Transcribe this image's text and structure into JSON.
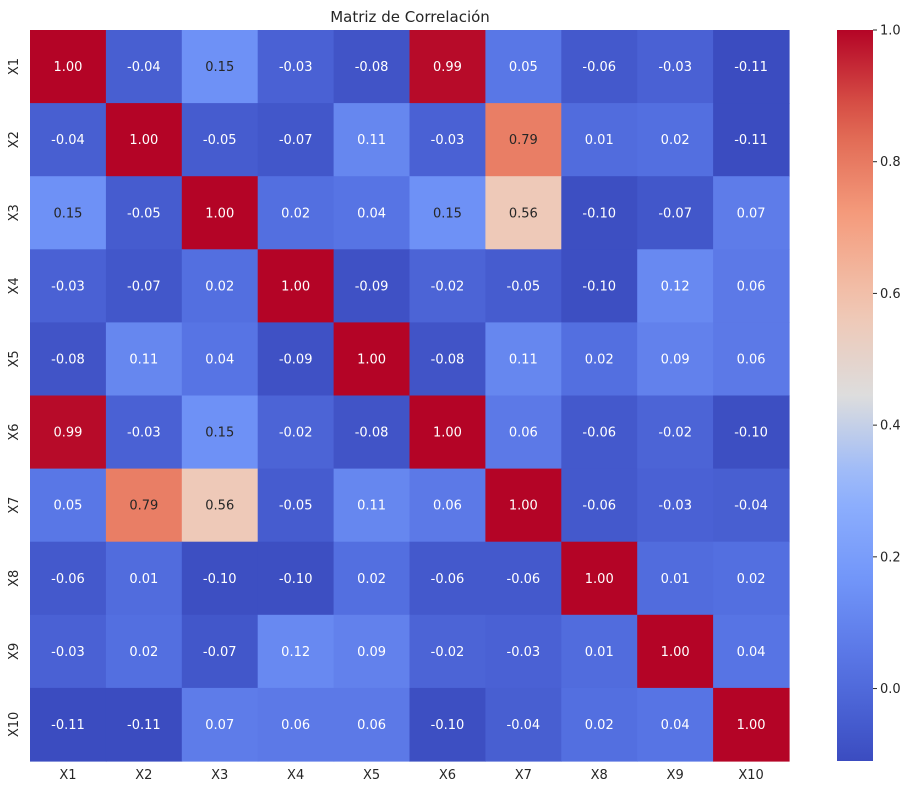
{
  "chart_data": {
    "type": "heatmap",
    "title": "Matriz de Correlación",
    "xlabel": "",
    "ylabel": "",
    "x_labels": [
      "X1",
      "X2",
      "X3",
      "X4",
      "X5",
      "X6",
      "X7",
      "X8",
      "X9",
      "X10"
    ],
    "y_labels": [
      "X1",
      "X2",
      "X3",
      "X4",
      "X5",
      "X6",
      "X7",
      "X8",
      "X9",
      "X10"
    ],
    "values": [
      [
        1.0,
        -0.04,
        0.15,
        -0.03,
        -0.08,
        0.99,
        0.05,
        -0.06,
        -0.03,
        -0.11
      ],
      [
        -0.04,
        1.0,
        -0.05,
        -0.07,
        0.11,
        -0.03,
        0.79,
        0.01,
        0.02,
        -0.11
      ],
      [
        0.15,
        -0.05,
        1.0,
        0.02,
        0.04,
        0.15,
        0.56,
        -0.1,
        -0.07,
        0.07
      ],
      [
        -0.03,
        -0.07,
        0.02,
        1.0,
        -0.09,
        -0.02,
        -0.05,
        -0.1,
        0.12,
        0.06
      ],
      [
        -0.08,
        0.11,
        0.04,
        -0.09,
        1.0,
        -0.08,
        0.11,
        0.02,
        0.09,
        0.06
      ],
      [
        0.99,
        -0.03,
        0.15,
        -0.02,
        -0.08,
        1.0,
        0.06,
        -0.06,
        -0.02,
        -0.1
      ],
      [
        0.05,
        0.79,
        0.56,
        -0.05,
        0.11,
        0.06,
        1.0,
        -0.06,
        -0.03,
        -0.04
      ],
      [
        -0.06,
        0.01,
        -0.1,
        -0.1,
        0.02,
        -0.06,
        -0.06,
        1.0,
        0.01,
        0.02
      ],
      [
        -0.03,
        0.02,
        -0.07,
        0.12,
        0.09,
        -0.02,
        -0.03,
        0.01,
        1.0,
        0.04
      ],
      [
        -0.11,
        -0.11,
        0.07,
        0.06,
        0.06,
        -0.1,
        -0.04,
        0.02,
        0.04,
        1.0
      ]
    ],
    "colorbar": {
      "colormap": "coolwarm",
      "vmin": -0.11,
      "vmax": 1.0,
      "ticks": [
        "0.0",
        "0.2",
        "0.4",
        "0.6",
        "0.8",
        "1.0"
      ]
    },
    "grid": false,
    "legend": "colorbar-right"
  }
}
